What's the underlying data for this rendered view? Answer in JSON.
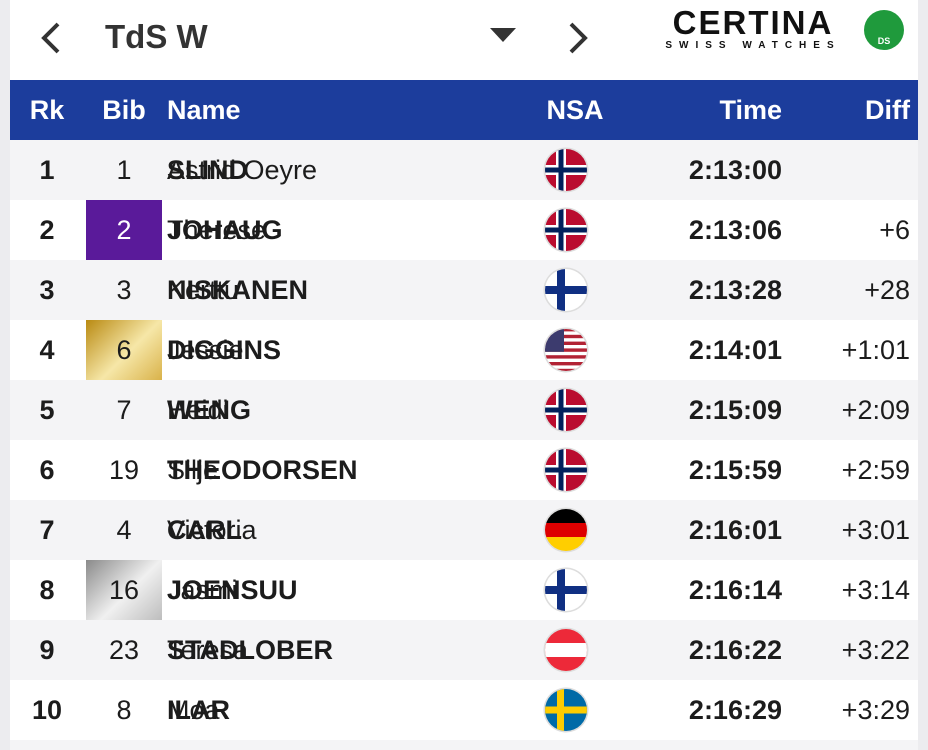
{
  "header": {
    "title": "TdS W",
    "logo": {
      "brand": "CERTINA",
      "tagline": "SWISS WATCHES",
      "badge": "DS"
    }
  },
  "table": {
    "columns": [
      "Rk",
      "Bib",
      "Name",
      "NSA",
      "Time",
      "Diff"
    ],
    "rows": [
      {
        "rank": "1",
        "bib": "1",
        "surname": "SLIND",
        "firstname": "Astrid Oeyre",
        "time": "2:13:00"
      },
      {
        "rank": "2",
        "bib": "2",
        "surname": "JOHAUG",
        "firstname": "Therese",
        "time": "2:13:06",
        "diff": "+6"
      },
      {
        "rank": "3",
        "bib": "3",
        "surname": "NISKANEN",
        "firstname": "Kerttu",
        "time": "2:13:28",
        "diff": "+28"
      },
      {
        "rank": "4",
        "bib": "6",
        "surname": "DIGGINS",
        "firstname": "Jessie",
        "time": "2:14:01",
        "diff": "+1:01"
      },
      {
        "rank": "5",
        "bib": "7",
        "surname": "WENG",
        "firstname": "Heidi",
        "time": "2:15:09",
        "diff": "+2:09"
      },
      {
        "rank": "6",
        "bib": "19",
        "surname": "THEODORSEN",
        "firstname": "Silje",
        "time": "2:15:59",
        "diff": "+2:59"
      },
      {
        "rank": "7",
        "bib": "4",
        "surname": "CARL",
        "firstname": "Victoria",
        "time": "2:16:01",
        "diff": "+3:01"
      },
      {
        "rank": "8",
        "bib": "16",
        "surname": "JOENSUU",
        "firstname": "Jasmi",
        "time": "2:16:14",
        "diff": "+3:14"
      },
      {
        "rank": "9",
        "bib": "23",
        "surname": "STADLOBER",
        "firstname": "Teresa",
        "time": "2:16:22",
        "diff": "+3:22"
      },
      {
        "rank": "10",
        "bib": "8",
        "surname": "ILAR",
        "firstname": "Moa",
        "time": "2:16:29",
        "diff": "+3:29"
      }
    ]
  }
}
